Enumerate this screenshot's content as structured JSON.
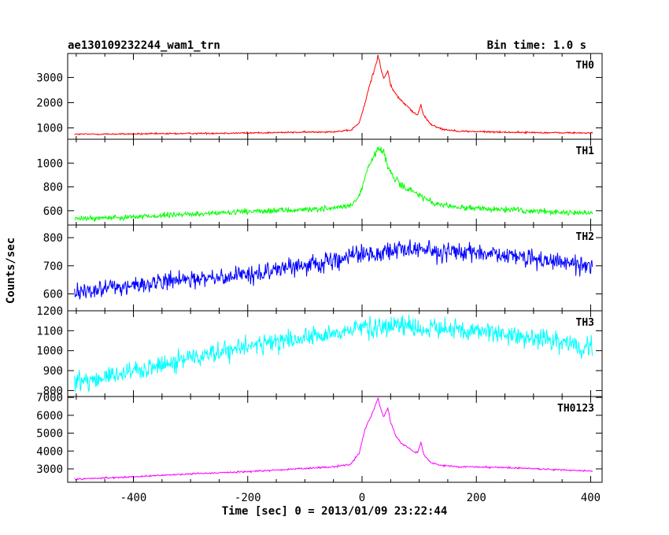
{
  "header": {
    "title": "ae130109232244_wam1_trn",
    "bin_time": "Bin time: 1.0 s"
  },
  "chart_data": {
    "type": "line",
    "xlabel": "Time [sec] 0 = 2013/01/09 23:22:44",
    "ylabel": "Counts/sec",
    "xlim": [
      -515,
      420
    ],
    "xticks": [
      -400,
      -200,
      0,
      200,
      400
    ],
    "x_data_range": [
      -503,
      403
    ],
    "grid": false,
    "panels": [
      {
        "name": "TH0",
        "color": "#ff0000",
        "ylim": [
          550,
          3950
        ],
        "yticks": [
          1000,
          2000,
          3000
        ],
        "noise": 30,
        "points": [
          [
            -503,
            750
          ],
          [
            -400,
            760
          ],
          [
            -300,
            780
          ],
          [
            -200,
            800
          ],
          [
            -100,
            830
          ],
          [
            -50,
            850
          ],
          [
            -20,
            900
          ],
          [
            -5,
            1200
          ],
          [
            5,
            1950
          ],
          [
            12,
            2600
          ],
          [
            18,
            3050
          ],
          [
            24,
            3500
          ],
          [
            28,
            3900
          ],
          [
            33,
            3350
          ],
          [
            38,
            2950
          ],
          [
            45,
            3250
          ],
          [
            50,
            2700
          ],
          [
            60,
            2300
          ],
          [
            70,
            2050
          ],
          [
            80,
            1850
          ],
          [
            90,
            1600
          ],
          [
            97,
            1500
          ],
          [
            103,
            1900
          ],
          [
            108,
            1500
          ],
          [
            120,
            1150
          ],
          [
            140,
            950
          ],
          [
            170,
            870
          ],
          [
            250,
            830
          ],
          [
            330,
            810
          ],
          [
            403,
            800
          ]
        ]
      },
      {
        "name": "TH1",
        "color": "#00ff00",
        "ylim": [
          480,
          1200
        ],
        "yticks": [
          600,
          800,
          1000
        ],
        "noise": 22,
        "points": [
          [
            -503,
            530
          ],
          [
            -400,
            550
          ],
          [
            -300,
            570
          ],
          [
            -200,
            590
          ],
          [
            -100,
            610
          ],
          [
            -50,
            620
          ],
          [
            -20,
            640
          ],
          [
            -5,
            720
          ],
          [
            10,
            950
          ],
          [
            20,
            1050
          ],
          [
            30,
            1130
          ],
          [
            38,
            1080
          ],
          [
            45,
            970
          ],
          [
            55,
            880
          ],
          [
            70,
            810
          ],
          [
            90,
            760
          ],
          [
            110,
            700
          ],
          [
            130,
            650
          ],
          [
            160,
            630
          ],
          [
            250,
            610
          ],
          [
            330,
            590
          ],
          [
            403,
            580
          ]
        ]
      },
      {
        "name": "TH2",
        "color": "#0000ff",
        "ylim": [
          540,
          845
        ],
        "yticks": [
          600,
          700,
          800
        ],
        "noise": 30,
        "points": [
          [
            -503,
            610
          ],
          [
            -450,
            620
          ],
          [
            -400,
            630
          ],
          [
            -300,
            650
          ],
          [
            -200,
            670
          ],
          [
            -100,
            700
          ],
          [
            0,
            740
          ],
          [
            50,
            755
          ],
          [
            100,
            755
          ],
          [
            200,
            745
          ],
          [
            300,
            725
          ],
          [
            403,
            700
          ]
        ]
      },
      {
        "name": "TH3",
        "color": "#00ffff",
        "ylim": [
          770,
          1200
        ],
        "yticks": [
          800,
          900,
          1000,
          1100,
          1200
        ],
        "noise": 45,
        "points": [
          [
            -503,
            840
          ],
          [
            -450,
            870
          ],
          [
            -400,
            900
          ],
          [
            -300,
            960
          ],
          [
            -200,
            1020
          ],
          [
            -100,
            1070
          ],
          [
            0,
            1110
          ],
          [
            50,
            1120
          ],
          [
            100,
            1115
          ],
          [
            200,
            1100
          ],
          [
            300,
            1060
          ],
          [
            403,
            1010
          ]
        ]
      },
      {
        "name": "TH0123",
        "color": "#ff00ff",
        "ylim": [
          2250,
          7050
        ],
        "yticks": [
          3000,
          4000,
          5000,
          6000,
          7000
        ],
        "noise": 40,
        "points": [
          [
            -503,
            2430
          ],
          [
            -400,
            2560
          ],
          [
            -300,
            2720
          ],
          [
            -200,
            2850
          ],
          [
            -100,
            3020
          ],
          [
            -50,
            3110
          ],
          [
            -20,
            3250
          ],
          [
            -5,
            3900
          ],
          [
            5,
            5200
          ],
          [
            12,
            5700
          ],
          [
            18,
            6100
          ],
          [
            24,
            6600
          ],
          [
            28,
            6950
          ],
          [
            33,
            6300
          ],
          [
            38,
            5900
          ],
          [
            45,
            6400
          ],
          [
            50,
            5600
          ],
          [
            60,
            4800
          ],
          [
            70,
            4400
          ],
          [
            80,
            4200
          ],
          [
            90,
            3950
          ],
          [
            97,
            3900
          ],
          [
            103,
            4500
          ],
          [
            108,
            3800
          ],
          [
            120,
            3350
          ],
          [
            140,
            3200
          ],
          [
            170,
            3120
          ],
          [
            250,
            3080
          ],
          [
            330,
            2970
          ],
          [
            403,
            2880
          ]
        ]
      }
    ]
  }
}
